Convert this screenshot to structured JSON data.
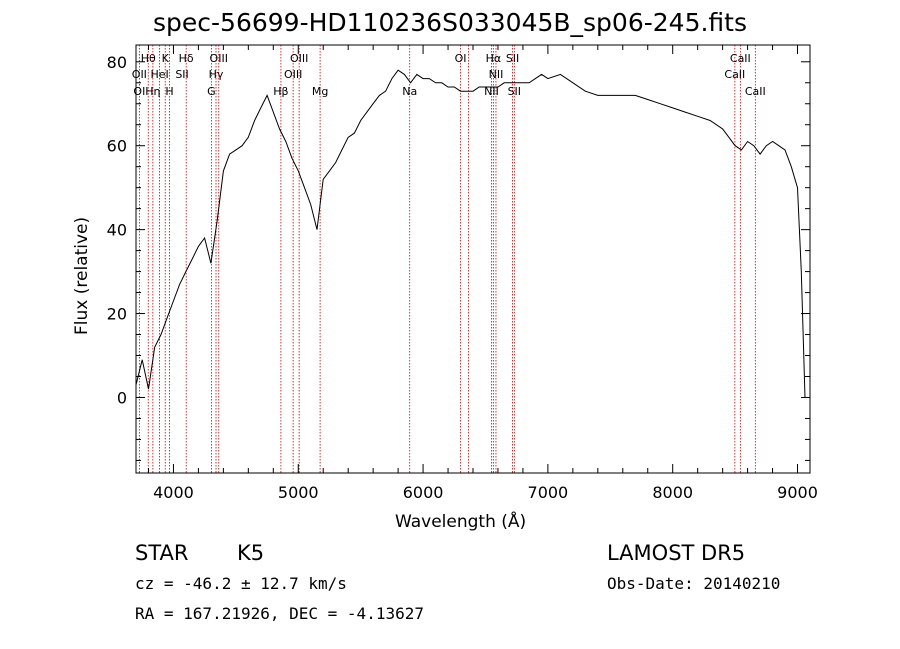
{
  "chart_data": {
    "type": "line",
    "title": "spec-56699-HD110236S033045B_sp06-245.fits",
    "xlabel": "Wavelength (Å)",
    "ylabel": "Flux (relative)",
    "xlim": [
      3700,
      9100
    ],
    "ylim": [
      -18,
      84
    ],
    "xticks": [
      4000,
      5000,
      6000,
      7000,
      8000,
      9000
    ],
    "yticks": [
      0,
      20,
      40,
      60,
      80
    ],
    "grid": false,
    "series": [
      {
        "color": "#000000",
        "x": [
          3700,
          3750,
          3800,
          3850,
          3900,
          3950,
          4000,
          4050,
          4100,
          4150,
          4200,
          4250,
          4300,
          4350,
          4400,
          4450,
          4500,
          4550,
          4600,
          4650,
          4700,
          4750,
          4800,
          4850,
          4900,
          4950,
          5000,
          5050,
          5100,
          5150,
          5200,
          5250,
          5300,
          5350,
          5400,
          5450,
          5500,
          5550,
          5600,
          5650,
          5700,
          5750,
          5800,
          5850,
          5900,
          5950,
          6000,
          6050,
          6100,
          6150,
          6200,
          6250,
          6300,
          6350,
          6400,
          6450,
          6500,
          6550,
          6600,
          6650,
          6700,
          6750,
          6800,
          6850,
          6900,
          6950,
          7000,
          7100,
          7200,
          7300,
          7400,
          7500,
          7600,
          7700,
          7800,
          7900,
          8000,
          8100,
          8200,
          8300,
          8400,
          8450,
          8500,
          8550,
          8600,
          8650,
          8700,
          8750,
          8800,
          8850,
          8900,
          8950,
          9000,
          9030,
          9060
        ],
        "y": [
          3,
          9,
          2,
          12,
          15,
          19,
          23,
          27,
          30,
          33,
          36,
          38,
          32,
          42,
          54,
          58,
          59,
          60,
          62,
          66,
          69,
          72,
          68,
          64,
          61,
          57,
          54,
          50,
          46,
          40,
          52,
          54,
          56,
          59,
          62,
          63,
          66,
          68,
          70,
          72,
          73,
          76,
          78,
          77,
          75,
          77,
          76,
          76,
          75,
          75,
          74,
          74,
          73,
          73,
          73,
          74,
          74,
          74,
          74,
          75,
          75,
          75,
          75,
          75,
          76,
          77,
          76,
          77,
          75,
          73,
          72,
          72,
          72,
          72,
          71,
          70,
          69,
          68,
          67,
          66,
          64,
          62,
          60,
          59,
          61,
          60,
          58,
          60,
          61,
          60,
          59,
          55,
          50,
          30,
          0
        ]
      }
    ],
    "line_markers": {
      "color": "#cc0000",
      "style": "dotted",
      "x": [
        3727,
        3798,
        3835,
        3889,
        3934,
        3969,
        4102,
        4304,
        4341,
        4363,
        4861,
        4959,
        5007,
        5175,
        5893,
        6300,
        6364,
        6548,
        6563,
        6584,
        6717,
        6731,
        8498,
        8542,
        8662
      ]
    },
    "line_labels": [
      {
        "text": "Hθ",
        "x": 3798,
        "row": 1
      },
      {
        "text": "K",
        "x": 3934,
        "row": 1
      },
      {
        "text": "Hδ",
        "x": 4102,
        "row": 1
      },
      {
        "text": "OIII",
        "x": 4363,
        "row": 1
      },
      {
        "text": "OIII",
        "x": 5007,
        "row": 1
      },
      {
        "text": "OI",
        "x": 6300,
        "row": 1
      },
      {
        "text": "Hα",
        "x": 6563,
        "row": 1
      },
      {
        "text": "SII",
        "x": 6717,
        "row": 1
      },
      {
        "text": "CaII",
        "x": 8542,
        "row": 1
      },
      {
        "text": "OII",
        "x": 3727,
        "row": 2
      },
      {
        "text": "HeI",
        "x": 3889,
        "row": 2
      },
      {
        "text": "SII",
        "x": 4069,
        "row": 2
      },
      {
        "text": "Hγ",
        "x": 4341,
        "row": 2
      },
      {
        "text": "OIII",
        "x": 4959,
        "row": 2
      },
      {
        "text": "NII",
        "x": 6584,
        "row": 2
      },
      {
        "text": "CaII",
        "x": 8498,
        "row": 2
      },
      {
        "text": "OI",
        "x": 3727,
        "row": 3
      },
      {
        "text": "Hη",
        "x": 3835,
        "row": 3
      },
      {
        "text": "H",
        "x": 3969,
        "row": 3
      },
      {
        "text": "G",
        "x": 4304,
        "row": 3
      },
      {
        "text": "Hβ",
        "x": 4861,
        "row": 3
      },
      {
        "text": "Mg",
        "x": 5175,
        "row": 3
      },
      {
        "text": "Na",
        "x": 5893,
        "row": 3
      },
      {
        "text": "NII",
        "x": 6548,
        "row": 3
      },
      {
        "text": "SII",
        "x": 6731,
        "row": 3
      },
      {
        "text": "CaII",
        "x": 8662,
        "row": 3
      }
    ]
  },
  "info": {
    "object_type": "STAR",
    "subclass": "K5",
    "survey": "LAMOST DR5",
    "cz": "cz = -46.2 ± 12.7 km/s",
    "obs_date": "Obs-Date: 20140210",
    "coords": "RA = 167.21926, DEC =  -4.13627"
  }
}
